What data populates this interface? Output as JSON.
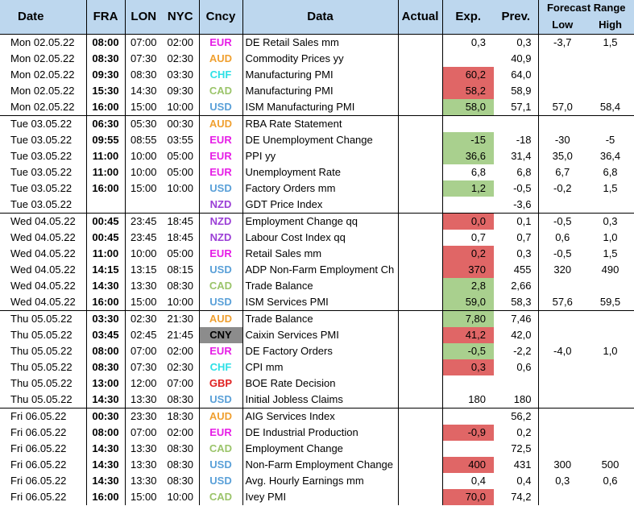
{
  "headers": {
    "date": "Date",
    "fra": "FRA",
    "lon": "LON",
    "nyc": "NYC",
    "cncy": "Cncy",
    "data": "Data",
    "actual": "Actual",
    "exp": "Exp.",
    "prev": "Prev.",
    "forecast_range": "Forecast Range",
    "low": "Low",
    "high": "High"
  },
  "currency_colors": {
    "EUR": "#e61ee6",
    "AUD": "#f0a030",
    "CHF": "#2ee0e6",
    "CAD": "#9bc46a",
    "USD": "#5aa0d8",
    "NZD": "#9b3fd6",
    "CNY": "#000000",
    "GBP": "#e02020"
  },
  "highlight_colors": {
    "red": "#e06666",
    "green": "#a9d08e",
    "gray": "#8c8c8c"
  },
  "rows": [
    {
      "date": "Mon 02.05.22",
      "fra": "08:00",
      "lon": "07:00",
      "nyc": "02:00",
      "cur": "EUR",
      "data": "DE Retail Sales mm",
      "actual": "",
      "exp": "0,3",
      "prev": "0,3",
      "low": "-3,7",
      "high": "1,5",
      "hl": "",
      "group": true
    },
    {
      "date": "Mon 02.05.22",
      "fra": "08:30",
      "lon": "07:30",
      "nyc": "02:30",
      "cur": "AUD",
      "data": "Commodity Prices yy",
      "actual": "",
      "exp": "",
      "prev": "40,9",
      "low": "",
      "high": "",
      "hl": ""
    },
    {
      "date": "Mon 02.05.22",
      "fra": "09:30",
      "lon": "08:30",
      "nyc": "03:30",
      "cur": "CHF",
      "data": "Manufacturing PMI",
      "actual": "",
      "exp": "60,2",
      "prev": "64,0",
      "low": "",
      "high": "",
      "hl": "red"
    },
    {
      "date": "Mon 02.05.22",
      "fra": "15:30",
      "lon": "14:30",
      "nyc": "09:30",
      "cur": "CAD",
      "data": "Manufacturing PMI",
      "actual": "",
      "exp": "58,2",
      "prev": "58,9",
      "low": "",
      "high": "",
      "hl": "red"
    },
    {
      "date": "Mon 02.05.22",
      "fra": "16:00",
      "lon": "15:00",
      "nyc": "10:00",
      "cur": "USD",
      "data": "ISM Manufacturing PMI",
      "actual": "",
      "exp": "58,0",
      "prev": "57,1",
      "low": "57,0",
      "high": "58,4",
      "hl": "green"
    },
    {
      "date": "Tue 03.05.22",
      "fra": "06:30",
      "lon": "05:30",
      "nyc": "00:30",
      "cur": "AUD",
      "data": "RBA Rate Statement",
      "actual": "",
      "exp": "",
      "prev": "",
      "low": "",
      "high": "",
      "hl": "",
      "group": true
    },
    {
      "date": "Tue 03.05.22",
      "fra": "09:55",
      "lon": "08:55",
      "nyc": "03:55",
      "cur": "EUR",
      "data": "DE Unemployment Change",
      "actual": "",
      "exp": "-15",
      "prev": "-18",
      "low": "-30",
      "high": "-5",
      "hl": "green"
    },
    {
      "date": "Tue 03.05.22",
      "fra": "11:00",
      "lon": "10:00",
      "nyc": "05:00",
      "cur": "EUR",
      "data": "PPI yy",
      "actual": "",
      "exp": "36,6",
      "prev": "31,4",
      "low": "35,0",
      "high": "36,4",
      "hl": "green"
    },
    {
      "date": "Tue 03.05.22",
      "fra": "11:00",
      "lon": "10:00",
      "nyc": "05:00",
      "cur": "EUR",
      "data": "Unemployment Rate",
      "actual": "",
      "exp": "6,8",
      "prev": "6,8",
      "low": "6,7",
      "high": "6,8",
      "hl": ""
    },
    {
      "date": "Tue 03.05.22",
      "fra": "16:00",
      "lon": "15:00",
      "nyc": "10:00",
      "cur": "USD",
      "data": "Factory Orders mm",
      "actual": "",
      "exp": "1,2",
      "prev": "-0,5",
      "low": "-0,2",
      "high": "1,5",
      "hl": "green"
    },
    {
      "date": "Tue 03.05.22",
      "fra": "",
      "lon": "",
      "nyc": "",
      "cur": "NZD",
      "data": "GDT Price Index",
      "actual": "",
      "exp": "",
      "prev": "-3,6",
      "low": "",
      "high": "",
      "hl": ""
    },
    {
      "date": "Wed 04.05.22",
      "fra": "00:45",
      "lon": "23:45",
      "nyc": "18:45",
      "cur": "NZD",
      "data": "Employment Change qq",
      "actual": "",
      "exp": "0,0",
      "prev": "0,1",
      "low": "-0,5",
      "high": "0,3",
      "hl": "red",
      "group": true
    },
    {
      "date": "Wed 04.05.22",
      "fra": "00:45",
      "lon": "23:45",
      "nyc": "18:45",
      "cur": "NZD",
      "data": "Labour Cost Index qq",
      "actual": "",
      "exp": "0,7",
      "prev": "0,7",
      "low": "0,6",
      "high": "1,0",
      "hl": ""
    },
    {
      "date": "Wed 04.05.22",
      "fra": "11:00",
      "lon": "10:00",
      "nyc": "05:00",
      "cur": "EUR",
      "data": "Retail Sales mm",
      "actual": "",
      "exp": "0,2",
      "prev": "0,3",
      "low": "-0,5",
      "high": "1,5",
      "hl": "red"
    },
    {
      "date": "Wed 04.05.22",
      "fra": "14:15",
      "lon": "13:15",
      "nyc": "08:15",
      "cur": "USD",
      "data": "ADP Non-Farm Employment Ch",
      "actual": "",
      "exp": "370",
      "prev": "455",
      "low": "320",
      "high": "490",
      "hl": "red"
    },
    {
      "date": "Wed 04.05.22",
      "fra": "14:30",
      "lon": "13:30",
      "nyc": "08:30",
      "cur": "CAD",
      "data": "Trade Balance",
      "actual": "",
      "exp": "2,8",
      "prev": "2,66",
      "low": "",
      "high": "",
      "hl": "green"
    },
    {
      "date": "Wed 04.05.22",
      "fra": "16:00",
      "lon": "15:00",
      "nyc": "10:00",
      "cur": "USD",
      "data": "ISM Services PMI",
      "actual": "",
      "exp": "59,0",
      "prev": "58,3",
      "low": "57,6",
      "high": "59,5",
      "hl": "green"
    },
    {
      "date": "Thu 05.05.22",
      "fra": "03:30",
      "lon": "02:30",
      "nyc": "21:30",
      "cur": "AUD",
      "data": "Trade Balance",
      "actual": "",
      "exp": "7,80",
      "prev": "7,46",
      "low": "",
      "high": "",
      "hl": "green",
      "group": true
    },
    {
      "date": "Thu 05.05.22",
      "fra": "03:45",
      "lon": "02:45",
      "nyc": "21:45",
      "cur": "CNY",
      "data": "Caixin Services PMI",
      "actual": "",
      "exp": "41,2",
      "prev": "42,0",
      "low": "",
      "high": "",
      "hl": "red",
      "curhl": "gray"
    },
    {
      "date": "Thu 05.05.22",
      "fra": "08:00",
      "lon": "07:00",
      "nyc": "02:00",
      "cur": "EUR",
      "data": "DE Factory Orders",
      "actual": "",
      "exp": "-0,5",
      "prev": "-2,2",
      "low": "-4,0",
      "high": "1,0",
      "hl": "green"
    },
    {
      "date": "Thu 05.05.22",
      "fra": "08:30",
      "lon": "07:30",
      "nyc": "02:30",
      "cur": "CHF",
      "data": "CPI mm",
      "actual": "",
      "exp": "0,3",
      "prev": "0,6",
      "low": "",
      "high": "",
      "hl": "red"
    },
    {
      "date": "Thu 05.05.22",
      "fra": "13:00",
      "lon": "12:00",
      "nyc": "07:00",
      "cur": "GBP",
      "data": "BOE Rate Decision",
      "actual": "",
      "exp": "",
      "prev": "",
      "low": "",
      "high": "",
      "hl": ""
    },
    {
      "date": "Thu 05.05.22",
      "fra": "14:30",
      "lon": "13:30",
      "nyc": "08:30",
      "cur": "USD",
      "data": "Initial Jobless Claims",
      "actual": "",
      "exp": "180",
      "prev": "180",
      "low": "",
      "high": "",
      "hl": ""
    },
    {
      "date": "Fri 06.05.22",
      "fra": "00:30",
      "lon": "23:30",
      "nyc": "18:30",
      "cur": "AUD",
      "data": "AIG Services Index",
      "actual": "",
      "exp": "",
      "prev": "56,2",
      "low": "",
      "high": "",
      "hl": "",
      "group": true
    },
    {
      "date": "Fri 06.05.22",
      "fra": "08:00",
      "lon": "07:00",
      "nyc": "02:00",
      "cur": "EUR",
      "data": "DE Industrial Production",
      "actual": "",
      "exp": "-0,9",
      "prev": "0,2",
      "low": "",
      "high": "",
      "hl": "red"
    },
    {
      "date": "Fri 06.05.22",
      "fra": "14:30",
      "lon": "13:30",
      "nyc": "08:30",
      "cur": "CAD",
      "data": "Employment Change",
      "actual": "",
      "exp": "",
      "prev": "72,5",
      "low": "",
      "high": "",
      "hl": ""
    },
    {
      "date": "Fri 06.05.22",
      "fra": "14:30",
      "lon": "13:30",
      "nyc": "08:30",
      "cur": "USD",
      "data": "Non-Farm Employment Change",
      "actual": "",
      "exp": "400",
      "prev": "431",
      "low": "300",
      "high": "500",
      "hl": "red"
    },
    {
      "date": "Fri 06.05.22",
      "fra": "14:30",
      "lon": "13:30",
      "nyc": "08:30",
      "cur": "USD",
      "data": "Avg. Hourly Earnings mm",
      "actual": "",
      "exp": "0,4",
      "prev": "0,4",
      "low": "0,3",
      "high": "0,6",
      "hl": ""
    },
    {
      "date": "Fri 06.05.22",
      "fra": "16:00",
      "lon": "15:00",
      "nyc": "10:00",
      "cur": "CAD",
      "data": "Ivey PMI",
      "actual": "",
      "exp": "70,0",
      "prev": "74,2",
      "low": "",
      "high": "",
      "hl": "red"
    }
  ]
}
